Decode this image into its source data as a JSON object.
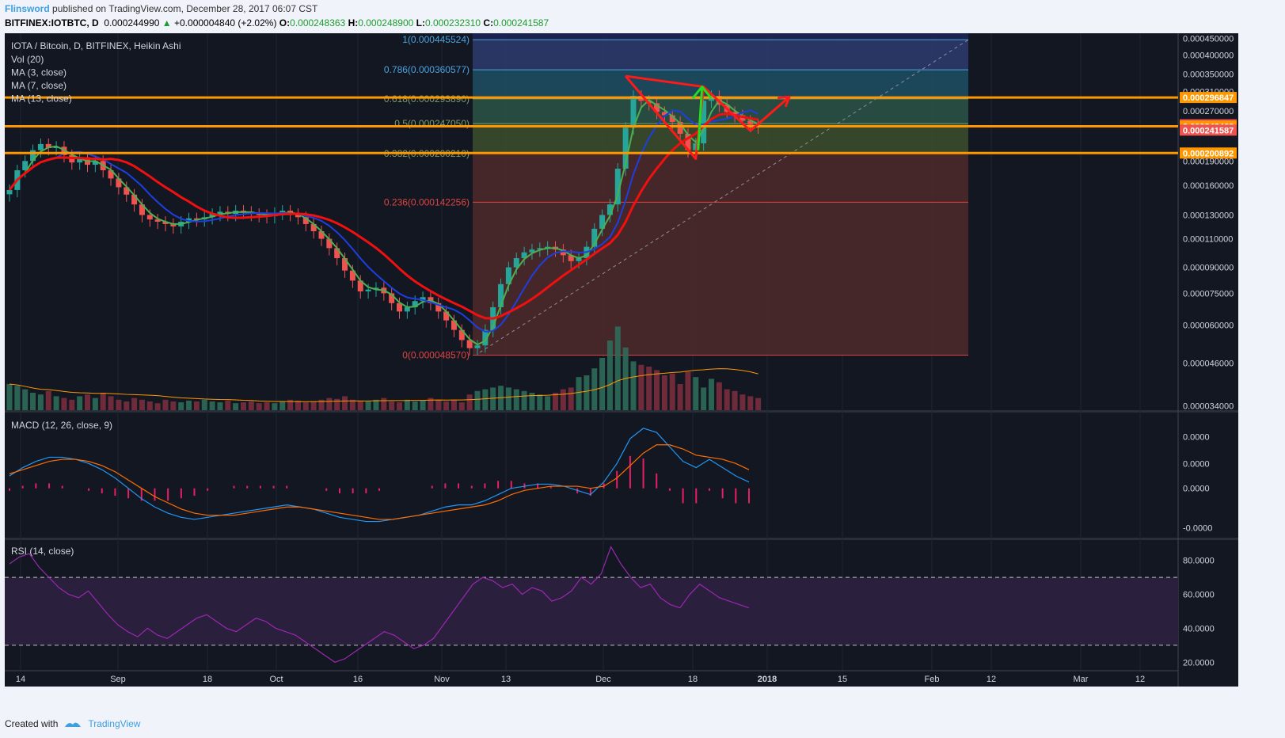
{
  "header": {
    "user": "Flinsword",
    "published_text": "published on TradingView.com, December 28, 2017 06:07 CST",
    "symbol": "BITFINEX:IOTBTC, D",
    "price": "0.000244990",
    "change": "+0.000004840 (+2.02%)",
    "o_label": "O:",
    "o": "0.000248363",
    "h_label": "H:",
    "h": "0.000248900",
    "l_label": "L:",
    "l": "0.000232310",
    "c_label": "C:",
    "c": "0.000241587"
  },
  "footer": {
    "created_with": "Created with",
    "brand": "TradingView"
  },
  "colors": {
    "bg": "#131722",
    "up": "#26a69a",
    "down": "#ef5350",
    "ma3": "#4caf50",
    "ma7": "#1f3ee0",
    "ma13": "#f01010",
    "orange": "#ff9800",
    "macd": "#2196f3",
    "signal": "#ff6d00",
    "hist": "#e91e63",
    "rsi": "#9c27b0"
  },
  "chart_data": [
    {
      "type": "candlestick",
      "title": "IOTA / Bitcoin, D, BITFINEX, Heikin Ashi",
      "indicators": [
        "Vol (20)",
        "MA (3, close)",
        "MA (7, close)",
        "MA (13, close)"
      ],
      "x_ticks": [
        "14",
        "Sep",
        "18",
        "Oct",
        "16",
        "Nov",
        "13",
        "Dec",
        "18",
        "2018",
        "15",
        "Feb",
        "12",
        "Mar",
        "12"
      ],
      "y_ticks": [
        "0.000450000",
        "0.000400000",
        "0.000350000",
        "0.000310000",
        "0.000270000",
        "0.000190000",
        "0.000160000",
        "0.000130000",
        "0.000110000",
        "0.000090000",
        "0.000075000",
        "0.000060000",
        "0.000046000",
        "0.000034000"
      ],
      "price_labels": [
        {
          "text": "0.000296847",
          "color": "#ff9800"
        },
        {
          "text": "0.000244990",
          "color": "#ef5350"
        },
        {
          "text": "0.000242463",
          "color": "#ff9800"
        },
        {
          "text": "0.000241587",
          "color": "#ef5350"
        },
        {
          "text": "0.000200892",
          "color": "#ff9800"
        }
      ],
      "fib_levels": [
        {
          "label": "1(0.000445524)",
          "value": 0.000445524,
          "color": "#2a2d60"
        },
        {
          "label": "0.786(0.000360577)",
          "value": 0.000360577,
          "color": "#2e3b6e"
        },
        {
          "label": "0.618(0.000293890)",
          "value": 0.00029389,
          "color": "#1f4f63"
        },
        {
          "label": "0.5(0.000247050)",
          "value": 0.00024705,
          "color": "#2b5545"
        },
        {
          "label": "0.382(0.000200210)",
          "value": 0.00020021,
          "color": "#3d4f2b"
        },
        {
          "label": "0.236(0.000142256)",
          "value": 0.000142256,
          "color": "#502a2a"
        },
        {
          "label": "0(0.000048570)",
          "value": 4.857e-05,
          "color": "#502a2a"
        }
      ],
      "horizontal_lines": [
        0.000296847,
        0.000242463,
        0.000200892
      ],
      "close": [
        0.000155,
        0.000178,
        0.00019,
        0.000205,
        0.000214,
        0.000208,
        0.00021,
        0.000198,
        0.000188,
        0.000195,
        0.000185,
        0.00019,
        0.000178,
        0.000168,
        0.000158,
        0.00015,
        0.00014,
        0.00013,
        0.000126,
        0.000124,
        0.000122,
        0.00012,
        0.000124,
        0.000127,
        0.000126,
        0.000128,
        0.000131,
        0.000133,
        0.000131,
        0.000134,
        0.000133,
        0.000131,
        0.00013,
        0.000129,
        0.000132,
        0.000134,
        0.000131,
        0.000128,
        0.000122,
        0.000116,
        0.00011,
        0.000103,
        9.6e-05,
        8.8e-05,
        8.2e-05,
        7.6e-05,
        7.7e-05,
        7.8e-05,
        7.5e-05,
        7e-05,
        6.6e-05,
        6.8e-05,
        7.1e-05,
        7.3e-05,
        7e-05,
        6.6e-05,
        6.2e-05,
        5.8e-05,
        5.4e-05,
        5.1e-05,
        5.2e-05,
        5.8e-05,
        6.8e-05,
        8e-05,
        9e-05,
        9.6e-05,
        0.0001,
        0.000102,
        0.000103,
        0.000104,
        0.000102,
        9.8e-05,
        9.4e-05,
        9.6e-05,
        0.000104,
        0.000118,
        0.00013,
        0.00014,
        0.00018,
        0.00024,
        0.0003,
        0.00029,
        0.000285,
        0.000268,
        0.000262,
        0.00025,
        0.00023,
        0.000205,
        0.000215,
        0.00029,
        0.0003,
        0.000282,
        0.000268,
        0.000262,
        0.000252,
        0.000245,
        0.000242
      ],
      "volume": [
        30,
        28,
        24,
        20,
        18,
        22,
        16,
        14,
        12,
        16,
        18,
        14,
        20,
        16,
        12,
        10,
        14,
        12,
        10,
        8,
        12,
        10,
        9,
        11,
        10,
        12,
        10,
        9,
        11,
        8,
        9,
        10,
        8,
        9,
        8,
        10,
        12,
        11,
        9,
        10,
        12,
        14,
        13,
        16,
        12,
        11,
        10,
        12,
        14,
        10,
        9,
        12,
        10,
        11,
        14,
        12,
        10,
        12,
        9,
        18,
        22,
        24,
        26,
        28,
        26,
        24,
        22,
        20,
        18,
        16,
        20,
        24,
        26,
        38,
        40,
        48,
        60,
        80,
        96,
        72,
        56,
        52,
        50,
        46,
        40,
        42,
        30,
        44,
        38,
        26,
        36,
        32,
        24,
        22,
        18,
        16,
        14
      ],
      "annotations": [
        "red wedge drawn from Dec high",
        "green arrow up",
        "red arrow toward 0.000296847"
      ]
    },
    {
      "type": "line",
      "title": "MACD (12, 26, close, 9)",
      "y_ticks": [
        "0.0000",
        "0.0000",
        "0.0000",
        "-0.0000"
      ],
      "series": [
        {
          "name": "MACD"
        },
        {
          "name": "Signal"
        },
        {
          "name": "Histogram"
        }
      ],
      "macd": [
        0.6,
        1.0,
        1.3,
        1.5,
        1.5,
        1.4,
        1.2,
        0.9,
        0.5,
        0.0,
        -0.5,
        -0.9,
        -1.2,
        -1.4,
        -1.5,
        -1.4,
        -1.3,
        -1.2,
        -1.1,
        -1.0,
        -0.9,
        -0.8,
        -0.9,
        -1.0,
        -1.2,
        -1.4,
        -1.5,
        -1.6,
        -1.6,
        -1.5,
        -1.4,
        -1.3,
        -1.1,
        -0.9,
        -0.8,
        -0.8,
        -0.6,
        -0.3,
        0.0,
        0.1,
        0.2,
        0.2,
        0.1,
        -0.1,
        -0.3,
        0.3,
        1.2,
        2.4,
        2.9,
        2.7,
        2.0,
        1.3,
        1.0,
        1.4,
        1.0,
        0.6,
        0.3
      ],
      "signal": [
        0.7,
        0.9,
        1.1,
        1.3,
        1.4,
        1.4,
        1.3,
        1.1,
        0.8,
        0.4,
        0.0,
        -0.4,
        -0.7,
        -1.0,
        -1.2,
        -1.3,
        -1.3,
        -1.3,
        -1.2,
        -1.1,
        -1.0,
        -0.9,
        -0.9,
        -1.0,
        -1.1,
        -1.2,
        -1.3,
        -1.4,
        -1.5,
        -1.5,
        -1.4,
        -1.3,
        -1.2,
        -1.1,
        -1.0,
        -0.9,
        -0.8,
        -0.6,
        -0.3,
        -0.1,
        0.0,
        0.1,
        0.1,
        0.1,
        0.0,
        0.1,
        0.5,
        1.1,
        1.7,
        2.1,
        2.1,
        1.9,
        1.6,
        1.5,
        1.4,
        1.2,
        0.9
      ]
    },
    {
      "type": "line",
      "title": "RSI (14, close)",
      "y_ticks": [
        "80.0000",
        "60.0000",
        "40.0000",
        "20.0000"
      ],
      "bands": [
        70,
        30
      ],
      "ylim": [
        15,
        92
      ],
      "values": [
        78,
        82,
        84,
        76,
        70,
        64,
        60,
        58,
        62,
        55,
        48,
        42,
        38,
        35,
        40,
        36,
        34,
        38,
        42,
        46,
        48,
        44,
        40,
        38,
        42,
        46,
        44,
        40,
        38,
        36,
        32,
        28,
        24,
        20,
        22,
        26,
        30,
        34,
        38,
        36,
        32,
        28,
        30,
        34,
        42,
        50,
        58,
        66,
        70,
        68,
        64,
        66,
        60,
        64,
        62,
        56,
        58,
        62,
        70,
        66,
        72,
        88,
        78,
        70,
        64,
        66,
        58,
        54,
        52,
        60,
        66,
        62,
        58,
        56,
        54,
        52
      ]
    }
  ]
}
